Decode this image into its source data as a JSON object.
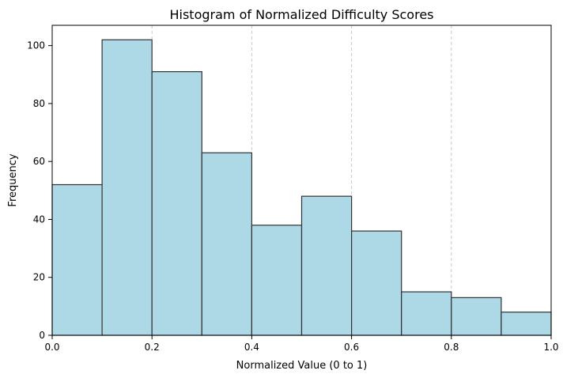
{
  "chart_data": {
    "type": "bar",
    "title": "Histogram of Normalized Difficulty Scores",
    "xlabel": "Normalized Value (0 to 1)",
    "ylabel": "Frequency",
    "bin_edges": [
      0.0,
      0.1,
      0.2,
      0.3,
      0.4,
      0.5,
      0.6,
      0.7,
      0.8,
      0.9,
      1.0
    ],
    "values": [
      52,
      102,
      91,
      63,
      38,
      48,
      36,
      15,
      13,
      8
    ],
    "xlim": [
      0,
      1
    ],
    "ylim": [
      0,
      107
    ],
    "xticks": [
      0.0,
      0.2,
      0.4,
      0.6,
      0.8,
      1.0
    ],
    "xtick_labels": [
      "0.0",
      "0.2",
      "0.4",
      "0.6",
      "0.8",
      "1.0"
    ],
    "yticks": [
      0,
      20,
      40,
      60,
      80,
      100
    ],
    "ytick_labels": [
      "0",
      "20",
      "40",
      "60",
      "80",
      "100"
    ],
    "grid": "x-axis, dashed",
    "bar_color": "#add8e6",
    "bar_edge_color": "#333333",
    "grid_color": "#c8c8c8"
  }
}
